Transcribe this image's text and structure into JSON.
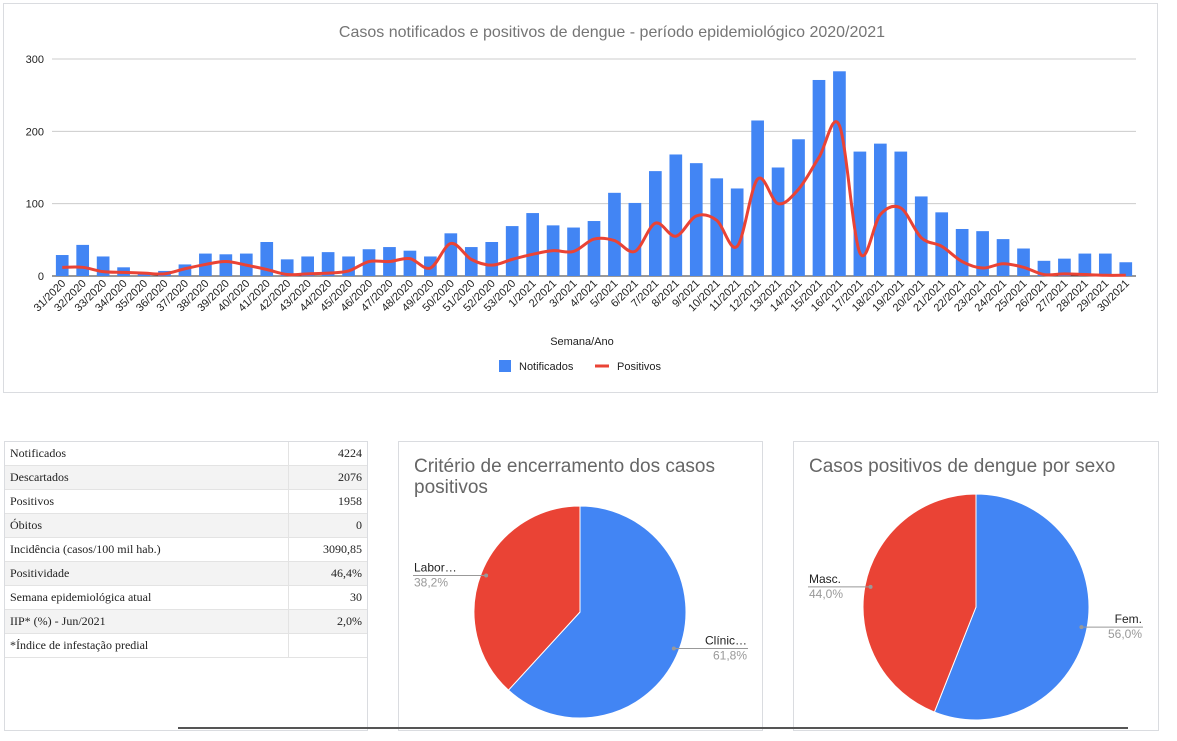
{
  "chart_data": [
    {
      "type": "bar",
      "title": "Casos notificados e positivos de dengue - período epidemiológico 2020/2021",
      "xlabel": "Semana/Ano",
      "ylabel": "",
      "ylim": [
        0,
        300
      ],
      "yticks": [
        0,
        100,
        200,
        300
      ],
      "grid": true,
      "legend_position": "bottom",
      "categories": [
        "31/2020",
        "32/2020",
        "33/2020",
        "34/2020",
        "35/2020",
        "36/2020",
        "37/2020",
        "38/2020",
        "39/2020",
        "40/2020",
        "41/2020",
        "42/2020",
        "43/2020",
        "44/2020",
        "45/2020",
        "46/2020",
        "47/2020",
        "48/2020",
        "49/2020",
        "50/2020",
        "51/2020",
        "52/2020",
        "53/2020",
        "1/2021",
        "2/2021",
        "3/2021",
        "4/2021",
        "5/2021",
        "6/2021",
        "7/2021",
        "8/2021",
        "9/2021",
        "10/2021",
        "11/2021",
        "12/2021",
        "13/2021",
        "14/2021",
        "15/2021",
        "16/2021",
        "17/2021",
        "18/2021",
        "19/2021",
        "20/2021",
        "21/2021",
        "22/2021",
        "23/2021",
        "24/2021",
        "25/2021",
        "26/2021",
        "27/2021",
        "28/2021",
        "29/2021",
        "30/2021"
      ],
      "series": [
        {
          "name": "Notificados",
          "type": "bar",
          "color": "#4285f4",
          "values": [
            29,
            43,
            27,
            12,
            5,
            7,
            16,
            31,
            30,
            31,
            47,
            23,
            27,
            33,
            27,
            37,
            40,
            35,
            27,
            59,
            40,
            47,
            69,
            87,
            70,
            67,
            76,
            115,
            101,
            145,
            168,
            156,
            135,
            121,
            215,
            150,
            189,
            271,
            283,
            172,
            183,
            172,
            110,
            88,
            65,
            62,
            51,
            38,
            21,
            24,
            31,
            31,
            19
          ]
        },
        {
          "name": "Positivos",
          "type": "line",
          "color": "#ea4335",
          "values": [
            12,
            12,
            6,
            5,
            4,
            3,
            10,
            16,
            20,
            15,
            9,
            2,
            3,
            4,
            7,
            20,
            20,
            24,
            11,
            45,
            23,
            15,
            23,
            30,
            35,
            34,
            51,
            49,
            34,
            73,
            55,
            83,
            77,
            41,
            134,
            100,
            120,
            164,
            208,
            32,
            85,
            94,
            53,
            41,
            20,
            11,
            17,
            12,
            2,
            3,
            2,
            1,
            1
          ]
        }
      ]
    },
    {
      "type": "pie",
      "title": "Critério de encerramento dos casos positivos",
      "slices": [
        {
          "label": "Clínic…",
          "value": 61.8,
          "display": "61,8%",
          "color": "#4285f4"
        },
        {
          "label": "Labor…",
          "value": 38.2,
          "display": "38,2%",
          "color": "#ea4335"
        }
      ]
    },
    {
      "type": "pie",
      "title": "Casos positivos de dengue por sexo",
      "slices": [
        {
          "label": "Fem.",
          "value": 56.0,
          "display": "56,0%",
          "color": "#4285f4"
        },
        {
          "label": "Masc.",
          "value": 44.0,
          "display": "44,0%",
          "color": "#ea4335"
        }
      ]
    }
  ],
  "table": {
    "rows": [
      {
        "label": "Notificados",
        "value": "4224"
      },
      {
        "label": "Descartados",
        "value": "2076"
      },
      {
        "label": "Positivos",
        "value": "1958"
      },
      {
        "label": "Óbitos",
        "value": "0"
      },
      {
        "label": "Incidência (casos/100 mil hab.)",
        "value": "3090,85"
      },
      {
        "label": "Positividade",
        "value": "46,4%"
      },
      {
        "label": "Semana epidemiológica atual",
        "value": "30"
      },
      {
        "label": "IIP* (%) - Jun/2021",
        "value": "2,0%"
      },
      {
        "label": "*Índice de infestação predial",
        "value": ""
      }
    ]
  }
}
